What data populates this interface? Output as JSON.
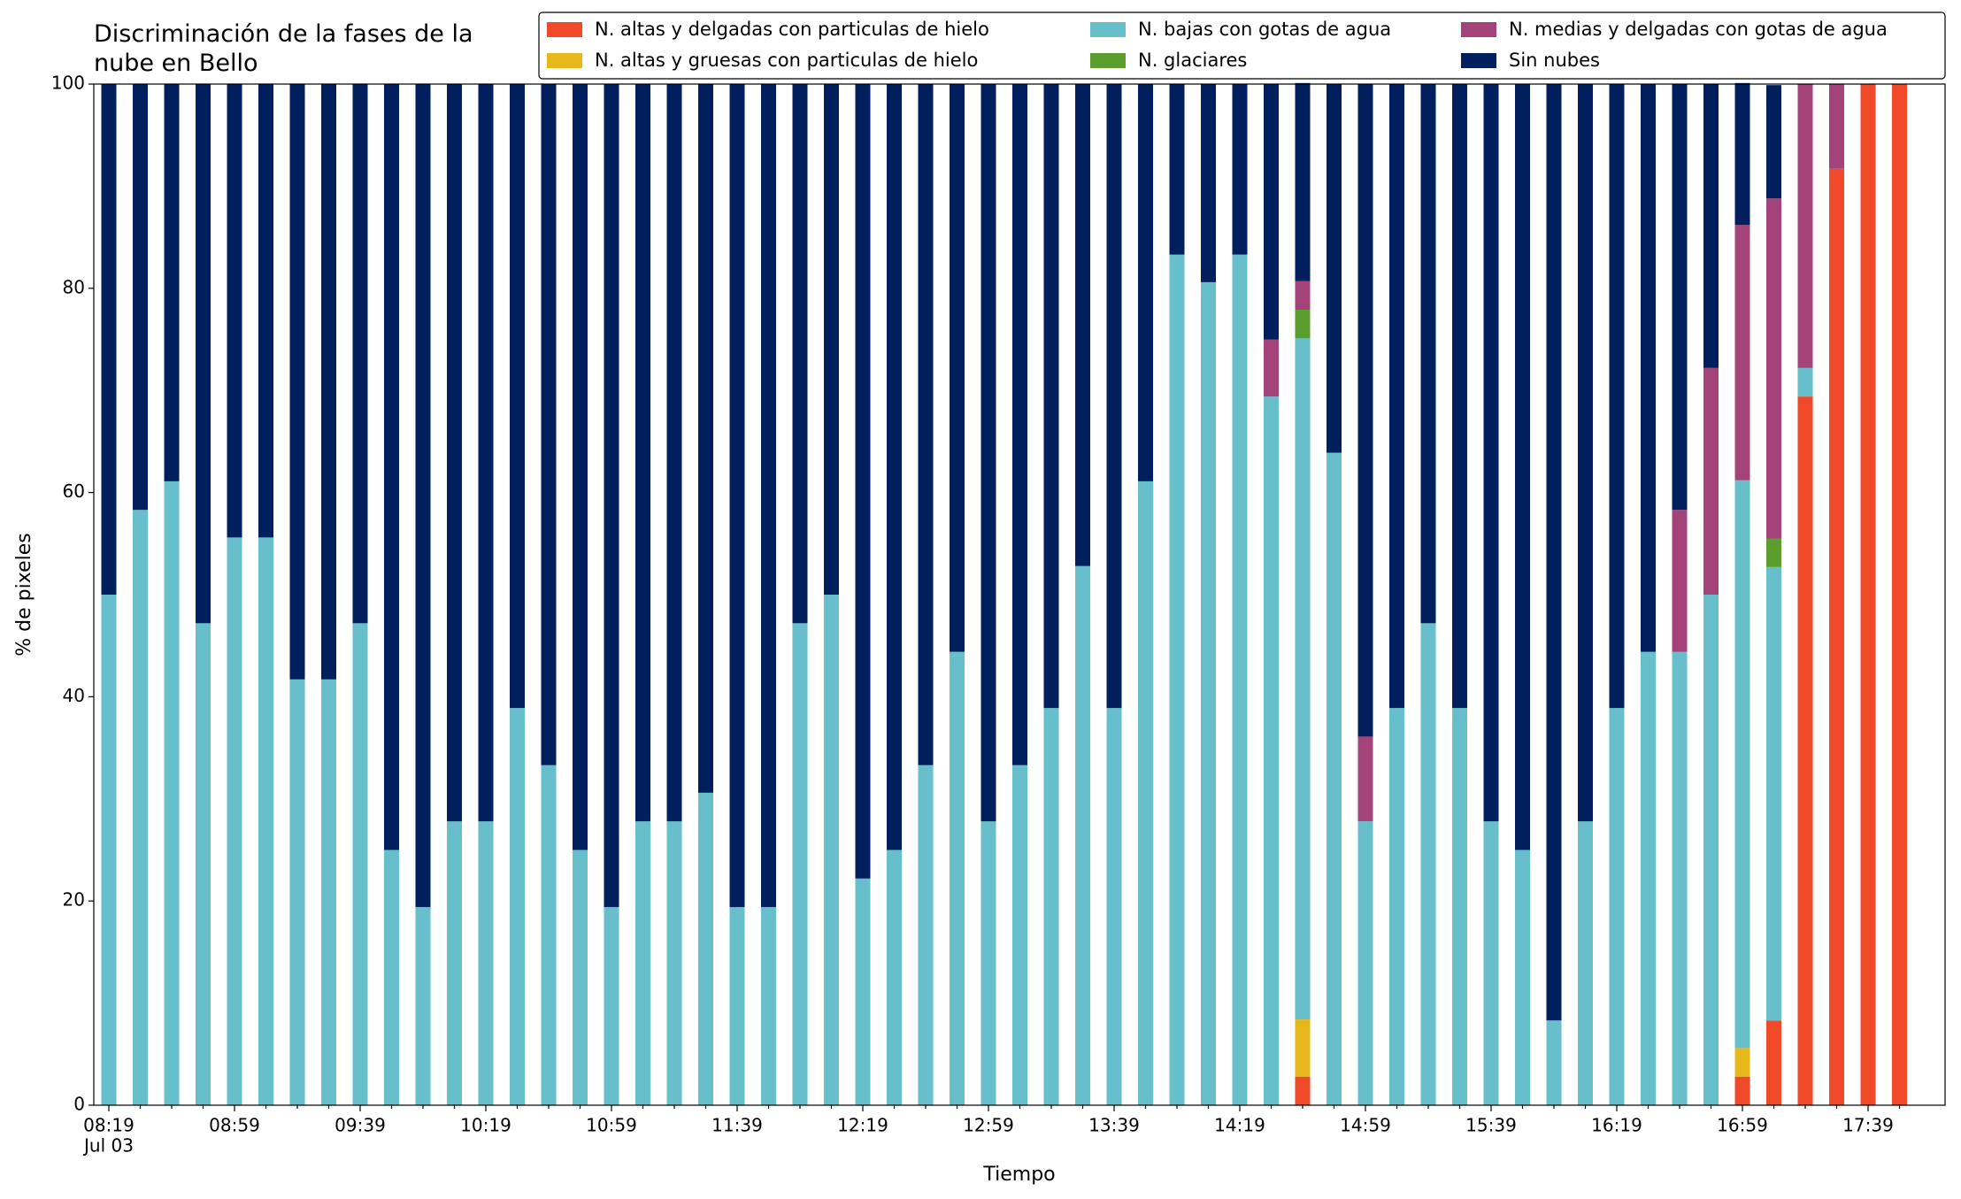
{
  "chart_data": {
    "type": "stacked_bar",
    "title": "Discriminación de la fases de la\nnube en Bello",
    "xlabel": "Tiempo",
    "ylabel": "% de pixeles",
    "date_label": "Jul 03",
    "categories": [
      "08:19",
      null,
      null,
      null,
      "08:59",
      null,
      null,
      null,
      "09:39",
      null,
      null,
      null,
      "10:19",
      null,
      null,
      null,
      "10:59",
      null,
      null,
      null,
      "11:39",
      null,
      null,
      null,
      "12:19",
      null,
      null,
      null,
      "12:59",
      null,
      null,
      null,
      "13:39",
      null,
      null,
      null,
      "14:19",
      null,
      null,
      null,
      "14:59",
      null,
      null,
      null,
      "15:39",
      null,
      null,
      null,
      "16:19",
      null,
      null,
      null,
      "16:59",
      null,
      null,
      null,
      "17:39",
      null
    ],
    "series": [
      {
        "name": "N. altas y delgadas con particulas de hielo",
        "color": "#f04a2a",
        "values": [
          0,
          0,
          0,
          0,
          0,
          0,
          0,
          0,
          0,
          0,
          0,
          0,
          0,
          0,
          0,
          0,
          0,
          0,
          0,
          0,
          0,
          0,
          0,
          0,
          0,
          0,
          0,
          0,
          0,
          0,
          0,
          0,
          0,
          0,
          0,
          0,
          0,
          0,
          2.8,
          0,
          0,
          0,
          0,
          0,
          0,
          0,
          0,
          0,
          0,
          0,
          0,
          0,
          2.8,
          8.3,
          69.4,
          91.7,
          100,
          100
        ]
      },
      {
        "name": "N. altas y gruesas con particulas de hielo",
        "color": "#e6b81c",
        "values": [
          0,
          0,
          0,
          0,
          0,
          0,
          0,
          0,
          0,
          0,
          0,
          0,
          0,
          0,
          0,
          0,
          0,
          0,
          0,
          0,
          0,
          0,
          0,
          0,
          0,
          0,
          0,
          0,
          0,
          0,
          0,
          0,
          0,
          0,
          0,
          0,
          0,
          0,
          5.6,
          0,
          0,
          0,
          0,
          0,
          0,
          0,
          0,
          0,
          0,
          0,
          0,
          0,
          2.8,
          0,
          0,
          0,
          0,
          0
        ]
      },
      {
        "name": "N. bajas con gotas de agua",
        "color": "#66bfcb",
        "values": [
          50,
          58.3,
          61.1,
          47.2,
          55.6,
          55.6,
          41.7,
          41.7,
          47.2,
          25,
          19.4,
          27.8,
          27.8,
          38.9,
          33.3,
          25,
          19.4,
          27.8,
          27.8,
          30.6,
          19.4,
          19.4,
          47.2,
          50,
          22.2,
          25,
          33.3,
          44.4,
          27.8,
          33.3,
          38.9,
          52.8,
          38.9,
          61.1,
          83.3,
          80.6,
          83.3,
          69.4,
          66.7,
          63.9,
          27.8,
          38.9,
          47.2,
          38.9,
          27.8,
          25,
          8.3,
          27.8,
          38.9,
          44.4,
          44.4,
          50,
          55.6,
          44.4,
          2.8,
          0,
          0,
          0
        ]
      },
      {
        "name": "N. glaciares",
        "color": "#5c9e2e",
        "values": [
          0,
          0,
          0,
          0,
          0,
          0,
          0,
          0,
          0,
          0,
          0,
          0,
          0,
          0,
          0,
          0,
          0,
          0,
          0,
          0,
          0,
          0,
          0,
          0,
          0,
          0,
          0,
          0,
          0,
          0,
          0,
          0,
          0,
          0,
          0,
          0,
          0,
          0,
          2.8,
          0,
          0,
          0,
          0,
          0,
          0,
          0,
          0,
          0,
          0,
          0,
          0,
          0,
          0,
          2.8,
          0,
          0,
          0,
          0
        ]
      },
      {
        "name": "N. medias y delgadas con gotas de agua",
        "color": "#a4437a",
        "values": [
          0,
          0,
          0,
          0,
          0,
          0,
          0,
          0,
          0,
          0,
          0,
          0,
          0,
          0,
          0,
          0,
          0,
          0,
          0,
          0,
          0,
          0,
          0,
          0,
          0,
          0,
          0,
          0,
          0,
          0,
          0,
          0,
          0,
          0,
          0,
          0,
          0,
          5.6,
          2.8,
          0,
          8.3,
          0,
          0,
          0,
          0,
          0,
          0,
          0,
          0,
          0,
          13.9,
          22.2,
          25,
          33.3,
          27.8,
          8.3,
          0,
          0
        ]
      },
      {
        "name": "Sin nubes",
        "color": "#001f5c",
        "values": [
          50,
          41.7,
          38.9,
          52.8,
          44.4,
          44.4,
          58.3,
          58.3,
          52.8,
          75,
          80.6,
          72.2,
          72.2,
          61.1,
          66.7,
          75,
          80.6,
          72.2,
          72.2,
          69.4,
          80.6,
          80.6,
          52.8,
          50,
          77.8,
          75,
          66.7,
          55.6,
          72.2,
          66.7,
          61.1,
          47.2,
          61.1,
          38.9,
          16.7,
          19.4,
          16.7,
          25,
          19.4,
          36.1,
          63.9,
          61.1,
          52.8,
          61.1,
          72.2,
          75,
          91.7,
          72.2,
          61.1,
          55.6,
          41.7,
          27.8,
          13.9,
          11.1,
          0,
          0,
          0,
          0
        ]
      }
    ],
    "ylim": [
      0,
      100
    ],
    "yticks": [
      0,
      20,
      40,
      60,
      80,
      100
    ],
    "grid": false
  }
}
